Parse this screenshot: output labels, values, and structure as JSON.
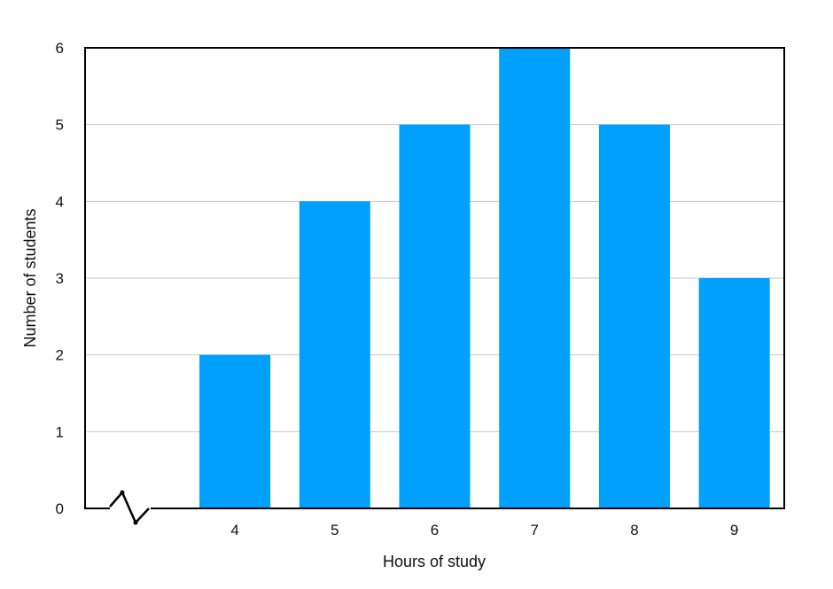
{
  "chart_data": {
    "type": "bar",
    "title": "",
    "xlabel": "Hours of study",
    "ylabel": "Number of students",
    "categories": [
      "4",
      "5",
      "6",
      "7",
      "8",
      "9"
    ],
    "values": [
      2,
      4,
      5,
      6,
      5,
      3
    ],
    "ylim": [
      0,
      6
    ],
    "yticks": [
      0,
      1,
      2,
      3,
      4,
      5,
      6
    ],
    "grid": true,
    "axis_break": true,
    "bar_color": "#00A0FF",
    "grid_color": "#C8C8C8",
    "legend": "none"
  }
}
